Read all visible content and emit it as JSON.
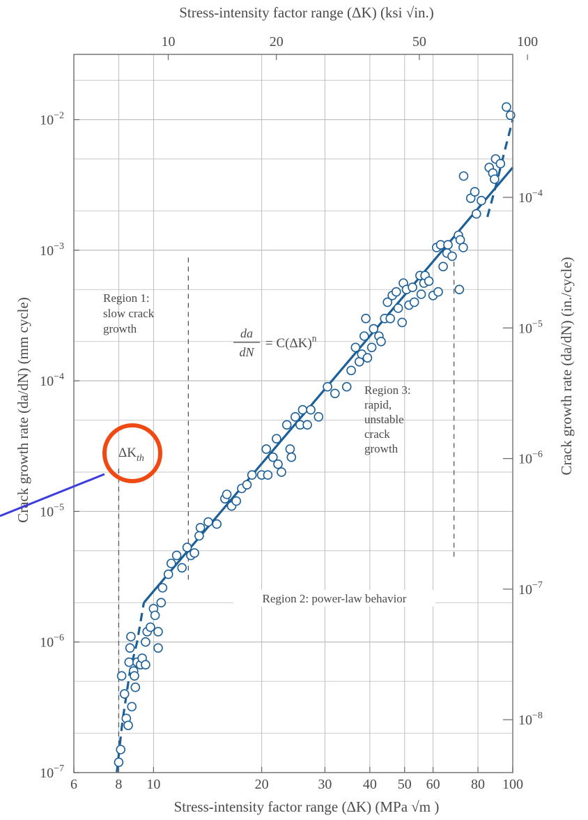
{
  "chart_data": {
    "type": "scatter",
    "axes": {
      "bottom": {
        "label": "Stress-intensity factor range (ΔK) (MPa √m )",
        "scale": "log",
        "range": [
          6,
          100
        ],
        "unit": "MPa√m",
        "ticks": [
          6,
          8,
          10,
          20,
          30,
          40,
          50,
          60,
          80,
          100
        ],
        "tick_labels": [
          "6",
          "8",
          "10",
          "20",
          "30",
          "40",
          "50",
          "60",
          "80",
          "100"
        ]
      },
      "top": {
        "label": "Stress-intensity factor range (ΔK) (ksi √in.)",
        "scale": "log",
        "unit": "ksi√in",
        "ticks": [
          10,
          20,
          50,
          100
        ],
        "tick_labels": [
          "10",
          "20",
          "50",
          "100"
        ]
      },
      "left": {
        "label": "Crack growth rate (da/dN) (mm cycle)",
        "scale": "log",
        "range": [
          1e-07,
          0.0316
        ],
        "unit": "mm/cycle",
        "ticks": [
          1e-07,
          1e-06,
          1e-05,
          0.0001,
          0.001,
          0.01
        ],
        "tick_labels": [
          {
            "base": "10",
            "exp": "−7"
          },
          {
            "base": "10",
            "exp": "−6"
          },
          {
            "base": "10",
            "exp": "−5"
          },
          {
            "base": "10",
            "exp": "−4"
          },
          {
            "base": "10",
            "exp": "−3"
          },
          {
            "base": "10",
            "exp": "−2"
          }
        ]
      },
      "right": {
        "label": "Crack growth rate (da/dN) (in./cycle)",
        "scale": "log",
        "unit": "in./cycle",
        "ticks": [
          1e-08,
          1e-07,
          1e-06,
          1e-05,
          0.0001
        ],
        "tick_labels": [
          {
            "base": "10",
            "exp": "−8"
          },
          {
            "base": "10",
            "exp": "−7"
          },
          {
            "base": "10",
            "exp": "−6"
          },
          {
            "base": "10",
            "exp": "−5"
          },
          {
            "base": "10",
            "exp": "−4"
          }
        ]
      }
    },
    "grid": true,
    "series": [
      {
        "kind": "points",
        "marker": "open-circle",
        "points": [
          [
            8.0,
            1.2e-07
          ],
          [
            8.1,
            1.5e-07
          ],
          [
            8.15,
            5.5e-07
          ],
          [
            8.3,
            4e-07
          ],
          [
            8.4,
            2.6e-07
          ],
          [
            8.5,
            2.3e-07
          ],
          [
            8.55,
            7e-07
          ],
          [
            8.6,
            9e-07
          ],
          [
            8.65,
            1.1e-06
          ],
          [
            8.7,
            3.2e-07
          ],
          [
            8.8,
            6e-07
          ],
          [
            8.85,
            5.5e-07
          ],
          [
            8.9,
            4.5e-07
          ],
          [
            9.0,
            7e-07
          ],
          [
            9.2,
            6.7e-07
          ],
          [
            9.3,
            7.5e-07
          ],
          [
            9.5,
            6.7e-07
          ],
          [
            9.5,
            1e-06
          ],
          [
            9.6,
            1.2e-06
          ],
          [
            9.8,
            1.3e-06
          ],
          [
            10.0,
            1.8e-06
          ],
          [
            10.1,
            1.6e-06
          ],
          [
            10.3,
            9e-07
          ],
          [
            10.3,
            1.2e-06
          ],
          [
            10.5,
            2e-06
          ],
          [
            10.6,
            2.6e-06
          ],
          [
            11.0,
            3.3e-06
          ],
          [
            11.2,
            4e-06
          ],
          [
            11.6,
            4.6e-06
          ],
          [
            12.0,
            3.7e-06
          ],
          [
            12.4,
            5.3e-06
          ],
          [
            12.7,
            4.6e-06
          ],
          [
            13.0,
            4.8e-06
          ],
          [
            13.4,
            6.5e-06
          ],
          [
            13.5,
            7.5e-06
          ],
          [
            14.2,
            8.3e-06
          ],
          [
            15.0,
            8e-06
          ],
          [
            15.8,
            1.25e-05
          ],
          [
            16.0,
            1.35e-05
          ],
          [
            16.5,
            1.1e-05
          ],
          [
            17.0,
            1.2e-05
          ],
          [
            17.6,
            1.5e-05
          ],
          [
            18.2,
            1.6e-05
          ],
          [
            18.8,
            1.9e-05
          ],
          [
            20.0,
            1.9e-05
          ],
          [
            20.8,
            1.9e-05
          ],
          [
            20.6,
            3e-05
          ],
          [
            21.5,
            2.6e-05
          ],
          [
            22.0,
            3.6e-05
          ],
          [
            22.2,
            2.3e-05
          ],
          [
            22.7,
            2e-05
          ],
          [
            23.5,
            4.6e-05
          ],
          [
            24.0,
            3e-05
          ],
          [
            24.2,
            2.6e-05
          ],
          [
            24.8,
            5.3e-05
          ],
          [
            25.6,
            4.6e-05
          ],
          [
            26.0,
            6e-05
          ],
          [
            26.8,
            4.6e-05
          ],
          [
            27.4,
            6e-05
          ],
          [
            28.8,
            5.3e-05
          ],
          [
            30.5,
            9e-05
          ],
          [
            32.0,
            8e-05
          ],
          [
            34.5,
            9e-05
          ],
          [
            35.5,
            0.00012
          ],
          [
            36.5,
            0.00018
          ],
          [
            37.4,
            0.00014
          ],
          [
            38.0,
            0.00016
          ],
          [
            38.6,
            0.00022
          ],
          [
            39.0,
            0.0003
          ],
          [
            39.4,
            0.00015
          ],
          [
            40.5,
            0.00018
          ],
          [
            41.0,
            0.00025
          ],
          [
            42.4,
            0.00022
          ],
          [
            43.0,
            0.0002
          ],
          [
            44.0,
            0.0003
          ],
          [
            44.8,
            0.0004
          ],
          [
            45.6,
            0.0003
          ],
          [
            46.2,
            0.00045
          ],
          [
            47.4,
            0.00048
          ],
          [
            48.0,
            0.00036
          ],
          [
            49.2,
            0.00028
          ],
          [
            49.6,
            0.00056
          ],
          [
            50.6,
            0.0005
          ],
          [
            51.4,
            0.00038
          ],
          [
            52.6,
            0.00052
          ],
          [
            53.2,
            0.0004
          ],
          [
            55.6,
            0.00046
          ],
          [
            55.2,
            0.00064
          ],
          [
            56.6,
            0.00056
          ],
          [
            57.0,
            0.00064
          ],
          [
            58.4,
            0.00058
          ],
          [
            60.0,
            0.00045
          ],
          [
            62.0,
            0.00048
          ],
          [
            61.4,
            0.00105
          ],
          [
            63.0,
            0.0011
          ],
          [
            64.0,
            0.00075
          ],
          [
            65.6,
            0.00095
          ],
          [
            66.0,
            0.0011
          ],
          [
            67.8,
            0.0009
          ],
          [
            70.6,
            0.0013
          ],
          [
            71.4,
            0.0012
          ],
          [
            72.8,
            0.00105
          ],
          [
            71.0,
            0.0005
          ],
          [
            73.0,
            0.0037
          ],
          [
            76.4,
            0.0025
          ],
          [
            78.4,
            0.0028
          ],
          [
            79.2,
            0.0019
          ],
          [
            81.8,
            0.0024
          ],
          [
            86.0,
            0.0043
          ],
          [
            88.0,
            0.0039
          ],
          [
            89.0,
            0.0035
          ],
          [
            89.6,
            0.005
          ],
          [
            92.4,
            0.0046
          ],
          [
            96.0,
            0.0125
          ],
          [
            98.6,
            0.0108
          ]
        ]
      },
      {
        "kind": "line",
        "style": "solid",
        "points": [
          [
            9.4,
            2e-06
          ],
          [
            100,
            0.0043
          ]
        ]
      },
      {
        "kind": "line",
        "style": "dashed",
        "points": [
          [
            85,
            0.0018
          ],
          [
            90,
            0.0032
          ],
          [
            95,
            0.0058
          ],
          [
            100,
            0.01
          ]
        ]
      },
      {
        "kind": "line",
        "style": "dashed",
        "points": [
          [
            7.9,
            1e-07
          ],
          [
            8.2,
            2.5e-07
          ],
          [
            8.6,
            6e-07
          ],
          [
            9.0,
            1e-06
          ],
          [
            9.4,
            2e-06
          ]
        ]
      }
    ],
    "reference_lines": [
      {
        "x": 8.0,
        "y_range": [
          1e-07,
          2.2e-05
        ],
        "style": "dashed"
      },
      {
        "x": 12.5,
        "y_range": [
          3e-06,
          0.0009
        ],
        "style": "dashed"
      },
      {
        "x": 68.6,
        "y_range": [
          4.5e-06,
          0.001
        ],
        "style": "dashed"
      }
    ],
    "annotations": {
      "region1": [
        "Region 1:",
        "slow crack",
        "growth"
      ],
      "region2": "Region 2: power-law behavior",
      "region3": [
        "Region 3:",
        "rapid,",
        "unstable",
        "crack",
        "growth"
      ],
      "equation": {
        "num": "da",
        "den": "dN",
        "rhs": "= C(ΔK)",
        "exp": "n"
      },
      "threshold": {
        "base": "ΔK",
        "sub": "th"
      }
    },
    "overlay": {
      "circle_color": "#f04a14",
      "pointer_color": "#3d3ddb"
    },
    "colors": {
      "line": "#1d5f97",
      "marker": "#1d5f97",
      "grid": "#bdbdbd",
      "text": "#4a4a4a"
    }
  }
}
